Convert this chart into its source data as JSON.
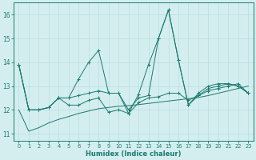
{
  "x": [
    0,
    1,
    2,
    3,
    4,
    5,
    6,
    7,
    8,
    9,
    10,
    11,
    12,
    13,
    14,
    15,
    16,
    17,
    18,
    19,
    20,
    21,
    22,
    23
  ],
  "line1": [
    13.9,
    12.0,
    12.0,
    12.1,
    12.5,
    12.5,
    12.6,
    12.7,
    12.8,
    12.7,
    12.7,
    12.0,
    12.5,
    12.6,
    15.0,
    16.2,
    14.1,
    12.2,
    12.6,
    12.9,
    13.0,
    13.1,
    13.0,
    12.7
  ],
  "line2": [
    13.9,
    12.0,
    12.0,
    12.1,
    12.5,
    12.5,
    13.3,
    14.0,
    14.5,
    12.7,
    12.7,
    11.85,
    12.65,
    13.9,
    15.0,
    16.2,
    14.1,
    12.2,
    12.7,
    13.0,
    13.1,
    13.1,
    13.0,
    12.7
  ],
  "line3": [
    13.9,
    12.0,
    12.0,
    12.1,
    12.5,
    12.2,
    12.2,
    12.4,
    12.5,
    11.9,
    12.0,
    11.85,
    12.3,
    12.5,
    12.55,
    12.7,
    12.7,
    12.4,
    12.6,
    12.8,
    12.9,
    13.0,
    13.1,
    12.7
  ],
  "line_trend": [
    12.0,
    11.1,
    11.25,
    11.45,
    11.6,
    11.72,
    11.85,
    11.95,
    12.05,
    12.1,
    12.15,
    12.18,
    12.22,
    12.27,
    12.32,
    12.37,
    12.42,
    12.47,
    12.52,
    12.6,
    12.7,
    12.8,
    12.9,
    13.0
  ],
  "color": "#1a7a6e",
  "bg_color": "#d4eef0",
  "grid_color": "#b8dce0",
  "xlabel": "Humidex (Indice chaleur)",
  "ylim": [
    10.7,
    16.5
  ],
  "xlim": [
    -0.5,
    23.5
  ],
  "yticks": [
    11,
    12,
    13,
    14,
    15,
    16
  ],
  "xticks": [
    0,
    1,
    2,
    3,
    4,
    5,
    6,
    7,
    8,
    9,
    10,
    11,
    12,
    13,
    14,
    15,
    16,
    17,
    18,
    19,
    20,
    21,
    22,
    23
  ]
}
